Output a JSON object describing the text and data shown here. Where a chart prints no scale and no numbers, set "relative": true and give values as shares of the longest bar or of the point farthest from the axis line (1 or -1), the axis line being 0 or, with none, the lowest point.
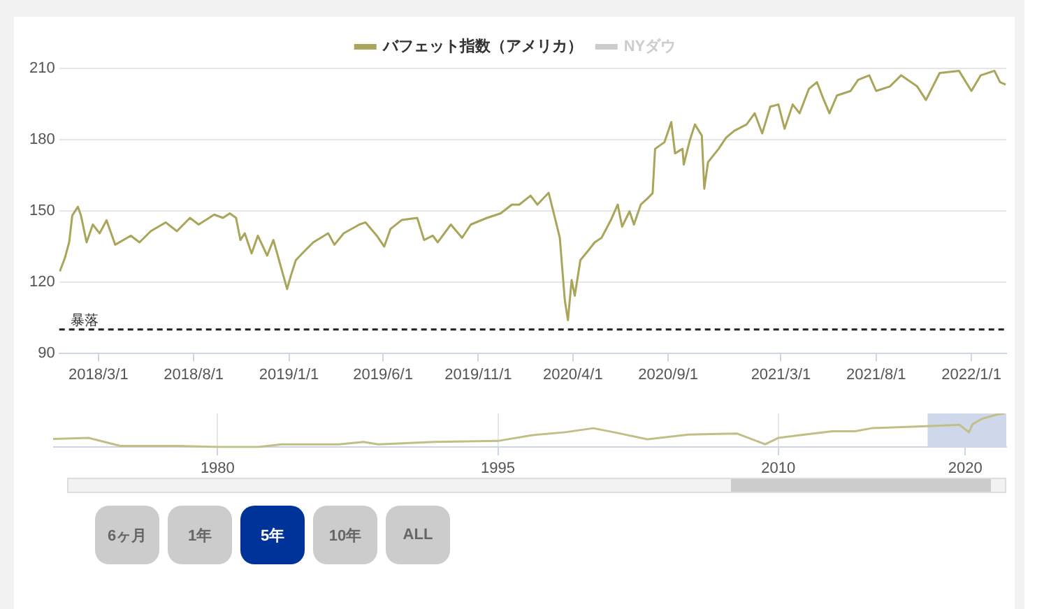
{
  "chart_data": [
    {
      "type": "line",
      "legend": "top",
      "grid": "y",
      "marker": "none",
      "line_style": "solid",
      "x": [
        "2017-12-29",
        "2018-01-06",
        "2018-01-13",
        "2018-01-18",
        "2018-01-27",
        "2018-02-01",
        "2018-02-10",
        "2018-02-20",
        "2018-03-03",
        "2018-03-14",
        "2018-03-28",
        "2018-04-22",
        "2018-05-06",
        "2018-05-24",
        "2018-06-17",
        "2018-07-05",
        "2018-07-26",
        "2018-08-09",
        "2018-09-03",
        "2018-09-17",
        "2018-09-28",
        "2018-10-08",
        "2018-10-15",
        "2018-10-22",
        "2018-11-02",
        "2018-11-12",
        "2018-11-27",
        "2018-12-07",
        "2018-12-21",
        "2018-12-29",
        "2019-01-04",
        "2019-01-12",
        "2019-01-26",
        "2019-02-09",
        "2019-03-05",
        "2019-03-15",
        "2019-03-30",
        "2019-04-24",
        "2019-05-04",
        "2019-05-22",
        "2019-06-03",
        "2019-06-13",
        "2019-07-01",
        "2019-07-26",
        "2019-08-06",
        "2019-08-20",
        "2019-08-28",
        "2019-09-18",
        "2019-10-06",
        "2019-10-20",
        "2019-11-15",
        "2019-12-07",
        "2019-12-25",
        "2020-01-06",
        "2020-01-24",
        "2020-02-04",
        "2020-02-22",
        "2020-03-04",
        "2020-03-11",
        "2020-03-19",
        "2020-03-24",
        "2020-03-30",
        "2020-04-04",
        "2020-04-13",
        "2020-04-25",
        "2020-05-06",
        "2020-05-17",
        "2020-06-01",
        "2020-06-12",
        "2020-06-19",
        "2020-07-01",
        "2020-07-08",
        "2020-07-19",
        "2020-07-31",
        "2020-08-07",
        "2020-08-11",
        "2020-08-26",
        "2020-09-06",
        "2020-09-12",
        "2020-09-24",
        "2020-09-26",
        "2020-10-06",
        "2020-10-14",
        "2020-10-25",
        "2020-10-29",
        "2020-11-04",
        "2020-11-21",
        "2020-12-03",
        "2020-12-16",
        "2021-01-05",
        "2021-01-18",
        "2021-01-30",
        "2021-02-12",
        "2021-02-25",
        "2021-03-07",
        "2021-03-20",
        "2021-03-31",
        "2021-04-15",
        "2021-04-28",
        "2021-05-09",
        "2021-05-18",
        "2021-05-30",
        "2021-06-21",
        "2021-07-03",
        "2021-07-21",
        "2021-08-01",
        "2021-08-23",
        "2021-09-10",
        "2021-10-06",
        "2021-10-20",
        "2021-11-11",
        "2021-12-12",
        "2022-01-01",
        "2022-01-16",
        "2022-02-07",
        "2022-02-16",
        "2022-02-25"
      ],
      "series": [
        {
          "name": "バフェット指数（アメリカ）",
          "color": "#a9a55a",
          "values": [
            124.5,
            130,
            136.7,
            148,
            151.7,
            148,
            136.7,
            144.2,
            140.5,
            146,
            135.7,
            139.5,
            136.7,
            141.4,
            145.1,
            141.4,
            147,
            144.2,
            148.4,
            147,
            148.9,
            147,
            137.7,
            140.5,
            132,
            139.5,
            131.1,
            137.7,
            124.5,
            117,
            122.6,
            129.2,
            133,
            136.7,
            140.5,
            135.7,
            140.5,
            144.2,
            145.1,
            139.5,
            134.9,
            142.3,
            146.1,
            147,
            137.7,
            139.5,
            136.7,
            144.2,
            138.6,
            144.2,
            147,
            148.9,
            152.6,
            152.6,
            156.4,
            152.6,
            157.6,
            146.1,
            138.6,
            112.3,
            103.9,
            120.8,
            114.2,
            129.2,
            133,
            136.7,
            138.6,
            146.1,
            152.6,
            143.3,
            149.8,
            144.2,
            152.6,
            155.5,
            157.4,
            176.1,
            178.9,
            187.4,
            174.2,
            176.1,
            169.5,
            179.9,
            186.4,
            181.7,
            159.3,
            170.5,
            176.1,
            180.8,
            183.7,
            186.4,
            191.1,
            182.6,
            193.9,
            194.8,
            184.6,
            194.8,
            191.1,
            201.4,
            204.2,
            196.7,
            191.1,
            198.6,
            200.5,
            205.2,
            207.1,
            200.5,
            202.4,
            207.1,
            202.4,
            196.7,
            208.1,
            209,
            200.5,
            207.1,
            209,
            204.2,
            203.2
          ]
        },
        {
          "name": "NYダウ",
          "color": "#cccccc",
          "values": [
            null,
            null,
            null,
            null,
            null,
            null,
            null,
            null,
            null,
            null,
            null,
            null,
            null,
            null,
            null,
            null,
            null,
            null,
            null,
            null,
            null,
            null,
            null,
            null,
            null,
            null,
            null,
            null,
            null,
            null,
            null,
            null,
            null,
            null,
            null,
            null,
            null,
            null,
            null,
            null,
            null,
            null,
            null,
            null,
            null,
            null,
            null,
            null,
            null,
            null,
            null,
            null,
            null,
            null,
            null,
            null,
            null,
            null,
            null,
            null,
            null,
            null,
            null,
            null,
            null,
            null,
            null,
            null,
            null,
            null,
            null,
            null,
            null,
            null,
            null,
            null,
            null,
            null,
            null,
            null,
            null,
            null,
            null,
            null,
            null,
            null,
            null,
            null,
            null,
            null,
            null,
            null,
            null,
            null,
            null,
            null,
            null,
            null,
            null,
            null,
            null,
            null,
            null,
            null,
            null,
            null,
            null,
            null,
            null,
            null,
            null,
            null,
            null,
            null,
            null,
            null,
            null
          ]
        }
      ],
      "xlim": [
        "2017-12-28",
        "2022-02-26"
      ],
      "xticks": [
        {
          "value": "2018-03-01",
          "label": "2018/3/1"
        },
        {
          "value": "2018-08-01",
          "label": "2018/8/1"
        },
        {
          "value": "2019-01-01",
          "label": "2019/1/1"
        },
        {
          "value": "2019-06-01",
          "label": "2019/6/1"
        },
        {
          "value": "2019-11-01",
          "label": "2019/11/1"
        },
        {
          "value": "2020-04-01",
          "label": "2020/4/1"
        },
        {
          "value": "2020-09-01",
          "label": "2020/9/1"
        },
        {
          "value": "2021-03-01",
          "label": "2021/3/1"
        },
        {
          "value": "2021-08-01",
          "label": "2021/8/1"
        },
        {
          "value": "2022-01-01",
          "label": "2022/1/1"
        }
      ],
      "ylim": [
        90,
        210
      ],
      "yticks": [
        90,
        120,
        150,
        180,
        210
      ],
      "ref_lines": [
        {
          "axis": "y",
          "value": 100,
          "label": "暴落",
          "color": "#222222",
          "line_style": "dashed"
        }
      ]
    },
    {
      "type": "line",
      "relative": true,
      "grid": "x",
      "marker": "none",
      "legend": false,
      "x": [
        1971.2,
        1973.1,
        1974.8,
        1977.8,
        1980,
        1982.2,
        1983.4,
        1986.5,
        1987.8,
        1988.6,
        1991.6,
        1995,
        1996.8,
        1998.6,
        2000.1,
        2001.2,
        2003,
        2005.2,
        2007.8,
        2009.3,
        2010,
        2011.1,
        2012.9,
        2014.1,
        2015,
        2016.9,
        2018.4,
        2019.7,
        2020.2,
        2020.4,
        2020.9,
        2021.4,
        2021.7,
        2022.1
      ],
      "series": [
        {
          "color": "#c2bf86",
          "values": [
            0.24,
            0.27,
            0.03,
            0.03,
            0,
            0,
            0.08,
            0.08,
            0.15,
            0.08,
            0.15,
            0.18,
            0.35,
            0.44,
            0.56,
            0.44,
            0.23,
            0.37,
            0.4,
            0.08,
            0.27,
            0.35,
            0.47,
            0.47,
            0.56,
            0.6,
            0.63,
            0.66,
            0.44,
            0.68,
            0.84,
            0.92,
            0.97,
            1
          ]
        }
      ],
      "xlim": [
        1971.2,
        2022.2
      ],
      "xticks": [
        1980,
        1995,
        2010,
        2020
      ],
      "bands": [
        {
          "axis": "x",
          "from": 2017.99,
          "to": 2022.2,
          "color": "#cfd8ea"
        }
      ]
    },
    {
      "type": "other",
      "annotations": [
        "6ヶ月",
        "1年",
        "5年",
        "10年",
        "ALL"
      ]
    }
  ]
}
